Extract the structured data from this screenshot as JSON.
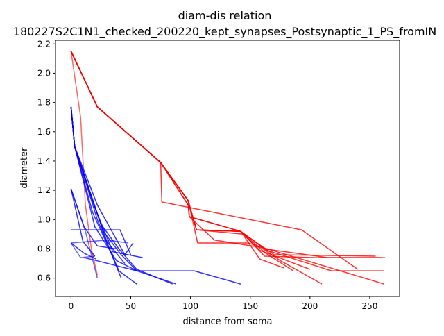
{
  "chart_data": {
    "type": "line",
    "title": "diam-dis relation",
    "subtitle": "180227S2C1N1_checked_200220_kept_synapses_Postsynaptic_1_PS_fromIN",
    "xlabel": "distance from soma",
    "ylabel": "diameter",
    "xlim": [
      -13,
      275
    ],
    "ylim": [
      0.475,
      2.225
    ],
    "xticks": [
      0,
      50,
      100,
      150,
      200,
      250
    ],
    "yticks": [
      0.6,
      0.8,
      1.0,
      1.2,
      1.4,
      1.6,
      1.8,
      2.0,
      2.2
    ],
    "ytick_labels": [
      "0.6",
      "0.8",
      "1.0",
      "1.2",
      "1.4",
      "1.6",
      "1.8",
      "2.0",
      "2.2"
    ],
    "grid": false,
    "colors": {
      "red": "#ff0000",
      "blue": "#0000ff",
      "axes": "#000000"
    },
    "series": [
      {
        "color": "red",
        "alpha": 0.8,
        "points": [
          [
            0,
            2.15
          ],
          [
            22,
            1.77
          ],
          [
            75,
            1.39
          ],
          [
            98,
            1.13
          ],
          [
            105,
            0.93
          ],
          [
            142,
            0.92
          ],
          [
            162,
            0.75
          ],
          [
            205,
            0.74
          ],
          [
            260,
            0.74
          ]
        ]
      },
      {
        "color": "red",
        "alpha": 0.8,
        "points": [
          [
            0,
            2.15
          ],
          [
            22,
            1.77
          ],
          [
            75,
            1.39
          ],
          [
            98,
            1.13
          ],
          [
            99,
            1.02
          ],
          [
            142,
            0.92
          ],
          [
            162,
            0.8
          ],
          [
            215,
            0.74
          ],
          [
            263,
            0.74
          ]
        ]
      },
      {
        "color": "red",
        "alpha": 0.8,
        "points": [
          [
            0,
            2.15
          ],
          [
            22,
            1.77
          ],
          [
            75,
            1.39
          ],
          [
            98,
            1.1
          ],
          [
            99,
            1.02
          ],
          [
            142,
            0.92
          ],
          [
            158,
            0.79
          ],
          [
            200,
            0.66
          ]
        ]
      },
      {
        "color": "red",
        "alpha": 0.8,
        "points": [
          [
            0,
            2.15
          ],
          [
            22,
            1.77
          ],
          [
            75,
            1.39
          ],
          [
            98,
            1.13
          ],
          [
            105,
            0.93
          ],
          [
            142,
            0.92
          ],
          [
            164,
            0.79
          ],
          [
            218,
            0.65
          ],
          [
            262,
            0.65
          ]
        ]
      },
      {
        "color": "red",
        "alpha": 0.8,
        "points": [
          [
            0,
            2.15
          ],
          [
            22,
            1.77
          ],
          [
            75,
            1.39
          ],
          [
            98,
            1.1
          ],
          [
            99,
            1.02
          ],
          [
            120,
            0.86
          ],
          [
            159,
            0.81
          ],
          [
            175,
            0.72
          ],
          [
            210,
            0.56
          ]
        ]
      },
      {
        "color": "red",
        "alpha": 0.8,
        "points": [
          [
            0,
            2.15
          ],
          [
            22,
            1.77
          ],
          [
            75,
            1.39
          ],
          [
            98,
            1.13
          ],
          [
            105,
            0.93
          ],
          [
            145,
            0.9
          ],
          [
            170,
            0.76
          ],
          [
            255,
            0.75
          ]
        ]
      },
      {
        "color": "red",
        "alpha": 0.8,
        "points": [
          [
            0,
            2.15
          ],
          [
            22,
            1.77
          ],
          [
            75,
            1.39
          ],
          [
            76,
            1.12
          ],
          [
            193,
            0.93
          ],
          [
            240,
            0.66
          ]
        ]
      },
      {
        "color": "red",
        "alpha": 0.8,
        "points": [
          [
            0,
            2.15
          ],
          [
            22,
            1.77
          ],
          [
            75,
            1.39
          ],
          [
            98,
            1.13
          ],
          [
            106,
            0.84
          ],
          [
            148,
            0.84
          ],
          [
            262,
            0.56
          ]
        ]
      },
      {
        "color": "red",
        "alpha": 0.8,
        "points": [
          [
            0,
            2.15
          ],
          [
            22,
            1.77
          ],
          [
            75,
            1.39
          ],
          [
            98,
            1.13
          ],
          [
            105,
            0.93
          ],
          [
            142,
            0.92
          ],
          [
            163,
            0.77
          ],
          [
            186,
            0.65
          ]
        ]
      },
      {
        "color": "red",
        "alpha": 0.8,
        "points": [
          [
            0,
            2.15
          ],
          [
            22,
            1.77
          ],
          [
            75,
            1.39
          ],
          [
            98,
            1.13
          ],
          [
            105,
            0.93
          ],
          [
            142,
            0.92
          ],
          [
            158,
            0.73
          ],
          [
            178,
            0.67
          ]
        ]
      },
      {
        "color": "red",
        "alpha": 0.6,
        "points": [
          [
            0,
            2.15
          ],
          [
            8,
            1.7
          ],
          [
            12,
            1.1
          ],
          [
            17,
            0.8
          ],
          [
            22,
            0.62
          ]
        ]
      },
      {
        "color": "blue",
        "alpha": 0.8,
        "points": [
          [
            0,
            1.77
          ],
          [
            3,
            1.5
          ],
          [
            25,
            0.97
          ],
          [
            40,
            0.8
          ],
          [
            55,
            0.66
          ],
          [
            85,
            0.56
          ]
        ]
      },
      {
        "color": "blue",
        "alpha": 0.8,
        "points": [
          [
            0,
            1.77
          ],
          [
            3,
            1.5
          ],
          [
            27,
            0.92
          ],
          [
            42,
            0.76
          ],
          [
            55,
            0.65
          ],
          [
            90,
            0.65
          ],
          [
            103,
            0.65
          ],
          [
            142,
            0.56
          ]
        ]
      },
      {
        "color": "blue",
        "alpha": 0.8,
        "points": [
          [
            0,
            1.77
          ],
          [
            3,
            1.5
          ],
          [
            20,
            0.95
          ],
          [
            38,
            0.72
          ],
          [
            55,
            0.65
          ],
          [
            88,
            0.56
          ]
        ]
      },
      {
        "color": "blue",
        "alpha": 0.8,
        "points": [
          [
            0,
            1.77
          ],
          [
            3,
            1.5
          ],
          [
            15,
            1.2
          ],
          [
            30,
            0.85
          ],
          [
            45,
            0.7
          ]
        ]
      },
      {
        "color": "blue",
        "alpha": 0.8,
        "points": [
          [
            0,
            1.77
          ],
          [
            3,
            1.5
          ],
          [
            22,
            1.1
          ],
          [
            45,
            0.76
          ],
          [
            52,
            0.84
          ]
        ]
      },
      {
        "color": "blue",
        "alpha": 0.8,
        "points": [
          [
            0,
            1.77
          ],
          [
            3,
            1.5
          ],
          [
            22,
            1.0
          ],
          [
            40,
            0.65
          ],
          [
            55,
            0.56
          ]
        ]
      },
      {
        "color": "blue",
        "alpha": 0.8,
        "points": [
          [
            0,
            1.77
          ],
          [
            3,
            1.5
          ],
          [
            18,
            1.05
          ],
          [
            32,
            0.8
          ],
          [
            42,
            0.6
          ]
        ]
      },
      {
        "color": "blue",
        "alpha": 0.8,
        "points": [
          [
            0,
            1.77
          ],
          [
            3,
            1.5
          ],
          [
            20,
            1.08
          ],
          [
            35,
            0.78
          ],
          [
            60,
            0.74
          ]
        ]
      },
      {
        "color": "blue",
        "alpha": 0.8,
        "points": [
          [
            0,
            1.21
          ],
          [
            11,
            0.95
          ],
          [
            22,
            0.82
          ],
          [
            38,
            0.8
          ]
        ]
      },
      {
        "color": "blue",
        "alpha": 0.8,
        "points": [
          [
            0,
            1.21
          ],
          [
            10,
            0.85
          ],
          [
            20,
            0.75
          ]
        ]
      },
      {
        "color": "blue",
        "alpha": 0.6,
        "points": [
          [
            0,
            1.21
          ],
          [
            12,
            0.92
          ],
          [
            22,
            0.6
          ]
        ]
      },
      {
        "color": "blue",
        "alpha": 0.8,
        "points": [
          [
            0,
            0.93
          ],
          [
            21,
            0.93
          ],
          [
            41,
            0.93
          ],
          [
            50,
            0.76
          ]
        ]
      },
      {
        "color": "blue",
        "alpha": 0.8,
        "points": [
          [
            0,
            0.84
          ],
          [
            11,
            0.77
          ],
          [
            21,
            0.73
          ]
        ]
      },
      {
        "color": "blue",
        "alpha": 0.6,
        "points": [
          [
            0,
            0.84
          ],
          [
            8,
            0.74
          ],
          [
            20,
            0.75
          ]
        ]
      },
      {
        "color": "blue",
        "alpha": 0.6,
        "points": [
          [
            0,
            0.84
          ],
          [
            30,
            0.86
          ],
          [
            48,
            0.84
          ]
        ]
      },
      {
        "color": "blue",
        "alpha": 0.8,
        "points": [
          [
            11,
            0.74
          ],
          [
            21,
            0.72
          ],
          [
            55,
            0.65
          ]
        ]
      }
    ]
  }
}
